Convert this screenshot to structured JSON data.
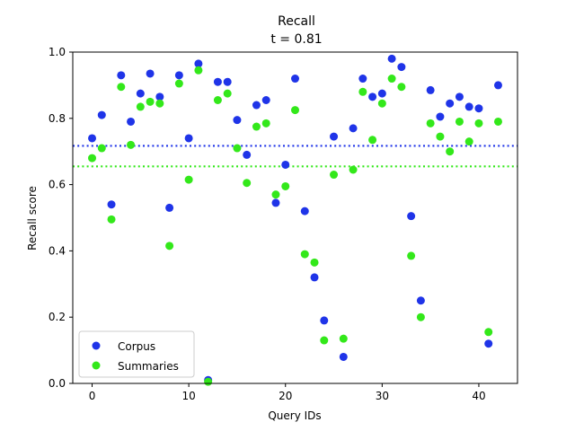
{
  "chart_data": {
    "type": "scatter",
    "title": "Recall",
    "subtitle": "t = 0.81",
    "xlabel": "Query IDs",
    "ylabel": "Recall score",
    "xlim": [
      -2,
      44
    ],
    "ylim": [
      0,
      1.0
    ],
    "xticks": [
      0,
      10,
      20,
      30,
      40
    ],
    "yticks": [
      0.0,
      0.2,
      0.4,
      0.6,
      0.8,
      1.0
    ],
    "xtick_labels": [
      "0",
      "10",
      "20",
      "30",
      "40"
    ],
    "ytick_labels": [
      "0.0",
      "0.2",
      "0.4",
      "0.6",
      "0.8",
      "1.0"
    ],
    "legend_position": "lower-left",
    "grid": false,
    "x": [
      0,
      1,
      2,
      3,
      4,
      5,
      6,
      7,
      8,
      9,
      10,
      11,
      12,
      13,
      14,
      15,
      16,
      17,
      18,
      19,
      20,
      21,
      22,
      23,
      24,
      25,
      26,
      27,
      28,
      29,
      30,
      31,
      32,
      33,
      34,
      35,
      36,
      37,
      38,
      39,
      40,
      41,
      42
    ],
    "series": [
      {
        "name": "Corpus",
        "color": "#1f34e8",
        "mean": 0.717,
        "values": [
          0.74,
          0.81,
          0.54,
          0.93,
          0.79,
          0.875,
          0.935,
          0.865,
          0.53,
          0.93,
          0.74,
          0.965,
          0.01,
          0.91,
          0.91,
          0.795,
          0.69,
          0.84,
          0.855,
          0.545,
          0.66,
          0.92,
          0.52,
          0.32,
          0.19,
          0.745,
          0.08,
          0.77,
          0.92,
          0.865,
          0.875,
          0.98,
          0.955,
          0.505,
          0.25,
          0.885,
          0.805,
          0.845,
          0.865,
          0.835,
          0.83,
          0.12,
          0.9
        ]
      },
      {
        "name": "Summaries",
        "color": "#33e81a",
        "mean": 0.655,
        "values": [
          0.68,
          0.71,
          0.495,
          0.895,
          0.72,
          0.835,
          0.85,
          0.845,
          0.415,
          0.905,
          0.615,
          0.945,
          0.005,
          0.855,
          0.875,
          0.71,
          0.605,
          0.775,
          0.785,
          0.57,
          0.595,
          0.825,
          0.39,
          0.365,
          0.13,
          0.63,
          0.135,
          0.645,
          0.88,
          0.735,
          0.845,
          0.92,
          0.895,
          0.385,
          0.2,
          0.785,
          0.745,
          0.7,
          0.79,
          0.73,
          0.785,
          0.155,
          0.79
        ]
      }
    ]
  }
}
